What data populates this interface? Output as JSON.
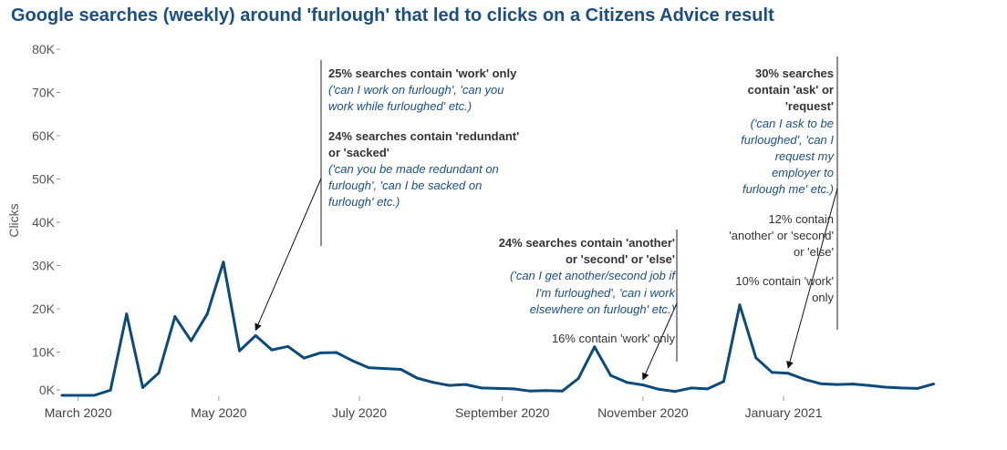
{
  "title": "Google searches (weekly) around 'furlough' that led to clicks on a Citizens Advice result",
  "colors": {
    "title": "#1a4f86",
    "line": "#0b4a7c",
    "italic_text": "#1a4f86",
    "text": "#333333"
  },
  "chart_data": {
    "type": "line",
    "title": "Google searches (weekly) around 'furlough' that led to clicks on a Citizens Advice result",
    "ylabel": "Clicks",
    "xlabel": "",
    "ylim": [
      0,
      80000
    ],
    "yticks": [
      {
        "value": 0,
        "label": "0K"
      },
      {
        "value": 10000,
        "label": "10K"
      },
      {
        "value": 20000,
        "label": "20K"
      },
      {
        "value": 30000,
        "label": "30K"
      },
      {
        "value": 40000,
        "label": "40K"
      },
      {
        "value": 50000,
        "label": "50K"
      },
      {
        "value": 60000,
        "label": "60K"
      },
      {
        "value": 70000,
        "label": "70K"
      },
      {
        "value": 80000,
        "label": "80K"
      }
    ],
    "xlim": [
      "2020-02-23",
      "2021-03-31"
    ],
    "xticks": [
      {
        "date": "2020-03-01",
        "label": "March 2020"
      },
      {
        "date": "2020-05-01",
        "label": "May 2020"
      },
      {
        "date": "2020-07-01",
        "label": "July 2020"
      },
      {
        "date": "2020-09-01",
        "label": "September 2020"
      },
      {
        "date": "2020-11-01",
        "label": "November 2020"
      },
      {
        "date": "2021-01-01",
        "label": "January 2021"
      }
    ],
    "grid": false,
    "legend": "none",
    "series": [
      {
        "x": [
          "2020-03-15",
          "2020-03-22",
          "2020-03-29",
          "2020-04-05",
          "2020-04-12",
          "2020-04-19",
          "2020-04-26",
          "2020-05-03",
          "2020-05-10",
          "2020-05-17",
          "2020-05-24",
          "2020-05-31",
          "2020-06-07",
          "2020-06-14",
          "2020-06-21",
          "2020-06-28",
          "2020-07-05",
          "2020-07-12",
          "2020-07-19",
          "2020-07-26",
          "2020-08-02",
          "2020-08-09",
          "2020-08-16",
          "2020-08-23",
          "2020-08-30",
          "2020-09-06",
          "2020-09-13",
          "2020-09-20",
          "2020-09-27",
          "2020-10-04",
          "2020-10-11",
          "2020-10-18",
          "2020-10-25",
          "2020-11-01",
          "2020-11-08",
          "2020-11-15",
          "2020-11-22",
          "2020-11-29",
          "2020-12-06",
          "2020-12-13",
          "2020-12-20",
          "2020-12-27",
          "2021-01-03",
          "2021-01-10",
          "2021-01-17",
          "2021-01-24",
          "2021-01-31",
          "2021-02-07",
          "2021-02-14",
          "2021-02-21",
          "2021-02-28",
          "2021-03-07"
        ],
        "values": [
          1200,
          18800,
          1800,
          5200,
          18200,
          12600,
          18800,
          30800,
          10300,
          13800,
          10500,
          11300,
          8600,
          9800,
          9900,
          8000,
          6400,
          6200,
          6000,
          4000,
          3000,
          2300,
          2500,
          1700,
          1600,
          1500,
          1000,
          1100,
          1000,
          3900,
          11200,
          4600,
          3000,
          2400,
          1400,
          900,
          1700,
          1500,
          3200,
          20900,
          8700,
          5300,
          5100,
          3700,
          2700,
          2500,
          2600,
          2300,
          1900,
          1700,
          1600,
          2600
        ],
        "values_note": "",
        "pre_start": {
          "x": [
            "2020-02-23",
            "2020-03-08"
          ],
          "values": [
            0,
            0
          ]
        }
      }
    ],
    "annotations": [
      {
        "arrow_to_date": "2020-05-17",
        "bold1": "25% searches contain 'work' only",
        "italic1": "('can I work on furlough', 'can you work while furloughed' etc.)",
        "bold2": "24% searches contain 'redundant' or 'sacked'",
        "italic2": "('can you be made redundant on furlough', 'can I be sacked on furlough' etc.)"
      },
      {
        "arrow_to_date": "2020-11-01",
        "bold": "24% searches contain 'another' or 'second' or 'else'",
        "italic": "('can I get another/second job if I'm furloughed', 'can i work elsewhere on furlough' etc.)",
        "normal": "16% contain 'work' only"
      },
      {
        "arrow_to_date": "2021-01-03",
        "bold": "30% searches contain 'ask' or 'request'",
        "italic": "('can I ask to be furloughed', 'can I request my employer to furlough me' etc.)",
        "normal1": "12% contain 'another' or 'second' or 'else'",
        "normal2": "10% contain 'work' only"
      }
    ]
  }
}
